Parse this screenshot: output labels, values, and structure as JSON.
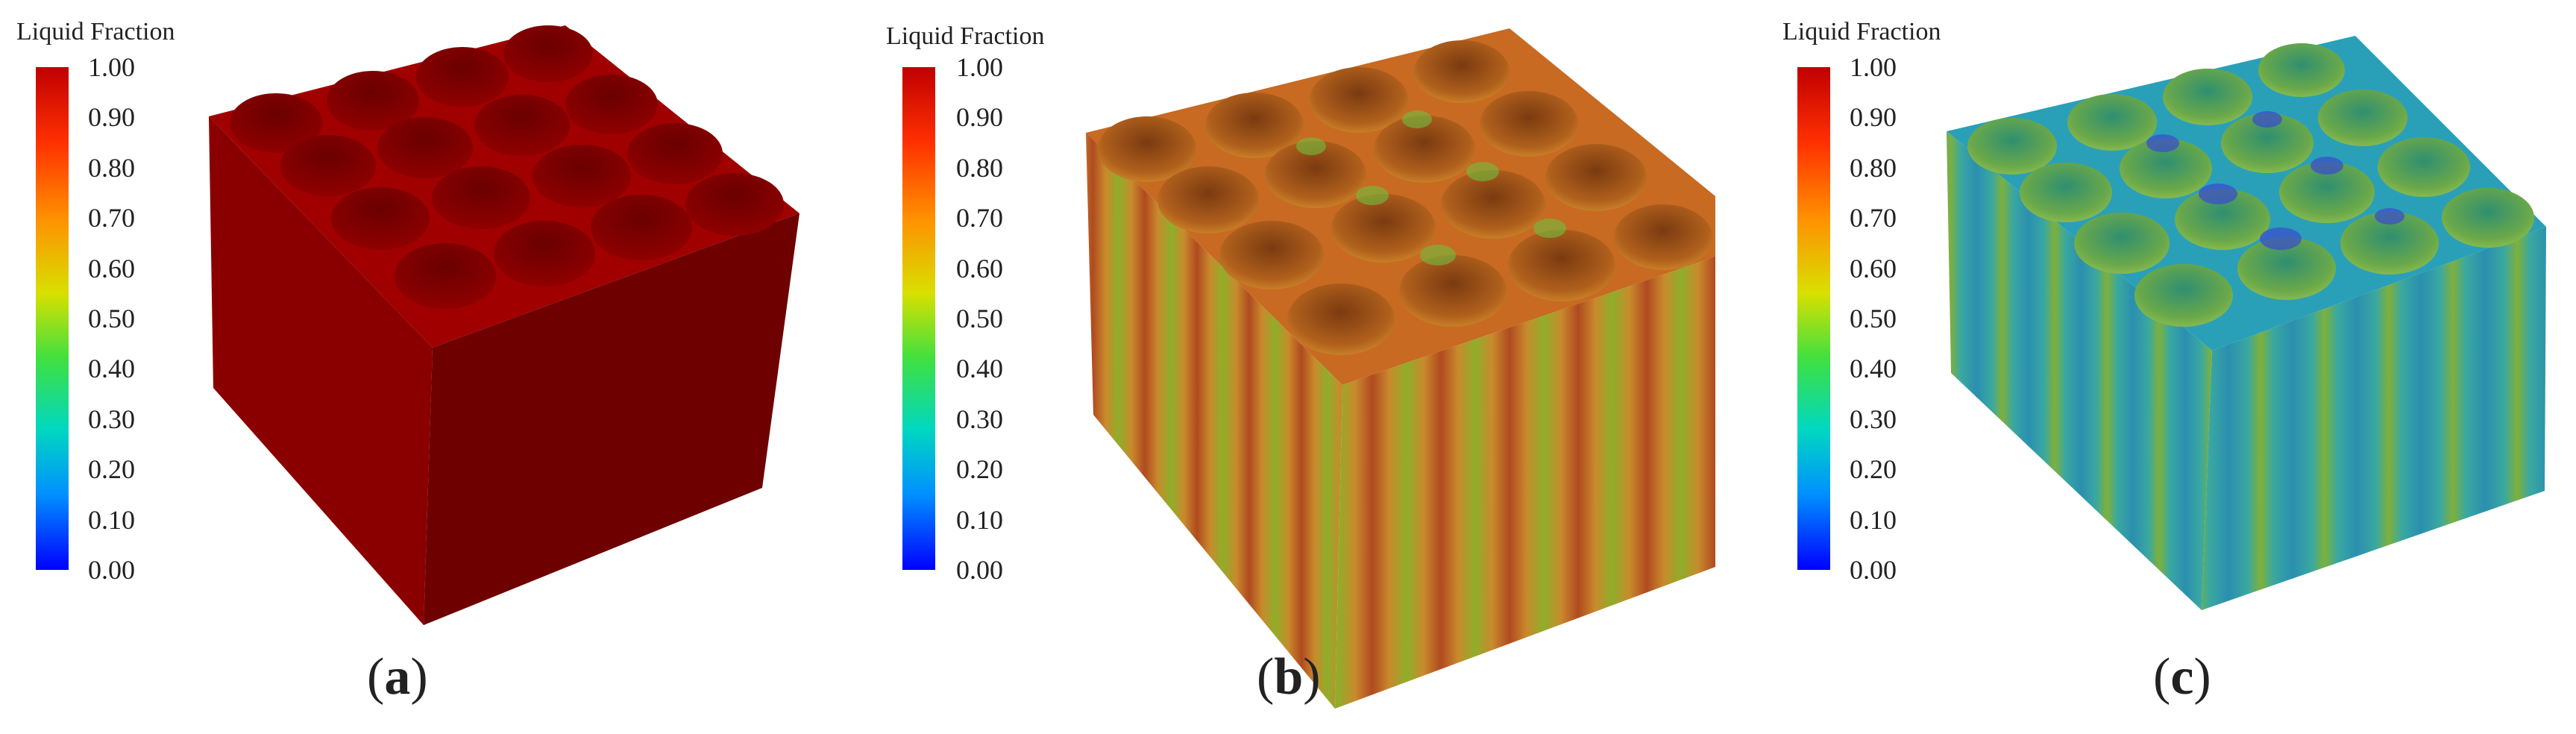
{
  "legend": {
    "title": "Liquid Fraction",
    "ticks": [
      "1.00",
      "0.90",
      "0.80",
      "0.70",
      "0.60",
      "0.50",
      "0.40",
      "0.30",
      "0.20",
      "0.10",
      "0.00"
    ]
  },
  "panels": [
    {
      "caption_open": "(",
      "caption_letter": "a",
      "caption_close": ")",
      "fill": "uniform-dark-red"
    },
    {
      "caption_open": "(",
      "caption_letter": "b",
      "caption_close": ")",
      "fill": "red-green-stripes"
    },
    {
      "caption_open": "(",
      "caption_letter": "c",
      "caption_close": ")",
      "fill": "green-blue-stripes"
    }
  ],
  "colormap": [
    "#0000ff",
    "#00a0ff",
    "#00e0c0",
    "#40e040",
    "#c0e000",
    "#ffa000",
    "#ff4000",
    "#c00000"
  ]
}
